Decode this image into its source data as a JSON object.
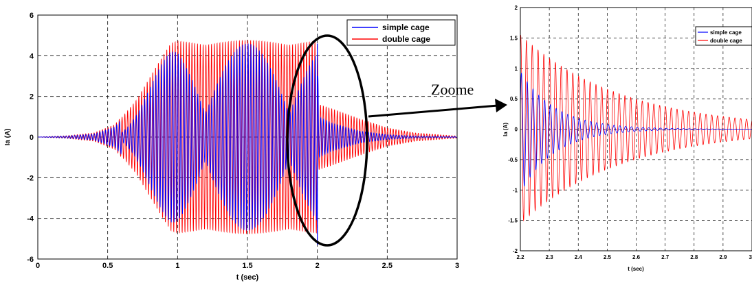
{
  "annotation": {
    "zoom_label": "Zoome"
  },
  "colors": {
    "simple_cage": "#0000ff",
    "double_cage": "#ff0000",
    "grid": "#000000",
    "ellipse": "#000000"
  },
  "chart_data": [
    {
      "type": "line",
      "title": "",
      "xlabel": "t (sec)",
      "ylabel": "Ia (A)",
      "xlim": [
        0,
        3
      ],
      "ylim": [
        -6,
        6
      ],
      "xticks": [
        "0",
        "0.5",
        "1",
        "1.5",
        "2",
        "2.5",
        "3"
      ],
      "yticks": [
        "6",
        "4",
        "2",
        "0",
        "-2",
        "-4",
        "-6"
      ],
      "grid": true,
      "legend_position": "top-right",
      "series": [
        {
          "name": "simple cage",
          "color": "#0000ff",
          "envelope_t": [
            0,
            0.2,
            0.4,
            0.55,
            0.7,
            0.85,
            0.95,
            1.0,
            1.2,
            1.4,
            1.6,
            1.8,
            1.95,
            2.0,
            2.01,
            2.1,
            2.3,
            2.5,
            2.7,
            3.0
          ],
          "envelope_amp": [
            0,
            0.05,
            0.15,
            0.5,
            1.6,
            3.2,
            4.3,
            4.6,
            4.6,
            4.6,
            4.6,
            4.6,
            4.6,
            4.6,
            1.0,
            0.7,
            0.3,
            0.12,
            0.05,
            0.02
          ],
          "beat_min": 0.25,
          "beat_period": 0.6,
          "frequency_hz": 50
        },
        {
          "name": "double cage",
          "color": "#ff0000",
          "envelope_t": [
            0,
            0.2,
            0.4,
            0.55,
            0.7,
            0.85,
            0.95,
            1.0,
            1.2,
            1.4,
            1.6,
            1.8,
            1.95,
            2.0,
            2.01,
            2.1,
            2.3,
            2.5,
            2.7,
            3.0
          ],
          "envelope_amp": [
            0,
            0.06,
            0.2,
            0.6,
            1.8,
            3.5,
            4.6,
            4.75,
            4.75,
            4.75,
            4.75,
            4.75,
            4.75,
            4.75,
            1.6,
            1.4,
            0.9,
            0.45,
            0.2,
            0.05
          ],
          "beat_min": 0.95,
          "beat_period": 0.6,
          "frequency_hz": 50
        }
      ]
    },
    {
      "type": "line",
      "title": "",
      "xlabel": "t (sec)",
      "ylabel": "Ia (A)",
      "xlim": [
        2.2,
        3.0
      ],
      "ylim": [
        -2,
        2
      ],
      "xticks": [
        "2.2",
        "2.3",
        "2.4",
        "2.5",
        "2.6",
        "2.7",
        "2.8",
        "2.9",
        "3"
      ],
      "yticks": [
        "2",
        "1.5",
        "1",
        "0.5",
        "0",
        "-0.5",
        "-1",
        "-1.5",
        "-2"
      ],
      "grid": true,
      "legend_position": "top-right",
      "series": [
        {
          "name": "simple cage",
          "color": "#0000ff",
          "amp0": 1.0,
          "decay_tau": 0.12,
          "frequency_hz": 50,
          "offset": -0.05
        },
        {
          "name": "double cage",
          "color": "#ff0000",
          "amp0": 1.55,
          "decay_tau": 0.35,
          "frequency_hz": 50,
          "offset": 0.0
        }
      ]
    }
  ]
}
